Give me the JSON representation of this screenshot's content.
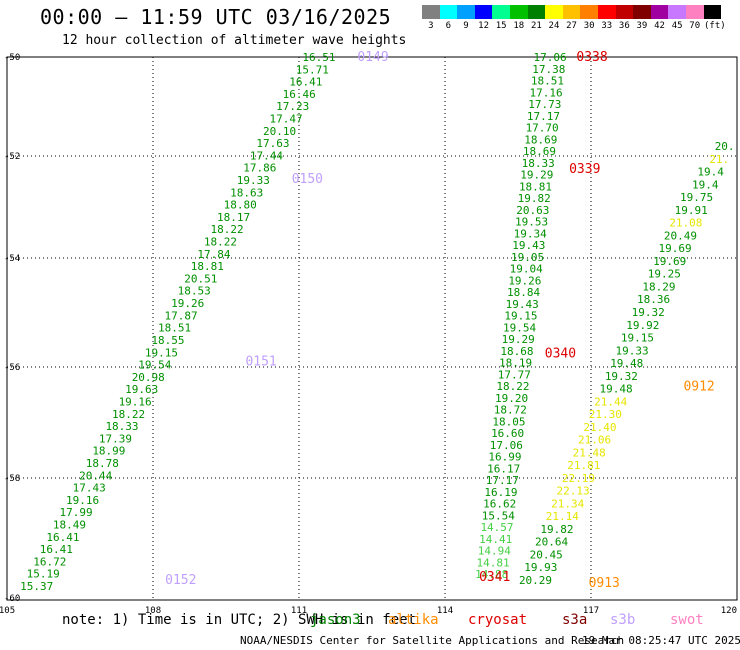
{
  "title": "00:00 — 11:59 UTC 03/16/2025",
  "subtitle": "12 hour collection of altimeter wave heights",
  "legend": {
    "unit": "(ft)",
    "bins": [
      {
        "label": "3",
        "color": "#808080"
      },
      {
        "label": "6",
        "color": "#00ffff"
      },
      {
        "label": "9",
        "color": "#00a0ff"
      },
      {
        "label": "12",
        "color": "#0000ff"
      },
      {
        "label": "15",
        "color": "#00ff90"
      },
      {
        "label": "18",
        "color": "#00c000"
      },
      {
        "label": "21",
        "color": "#008000"
      },
      {
        "label": "24",
        "color": "#ffff00"
      },
      {
        "label": "27",
        "color": "#ffc000"
      },
      {
        "label": "30",
        "color": "#ff8000"
      },
      {
        "label": "33",
        "color": "#ff0000"
      },
      {
        "label": "36",
        "color": "#c00000"
      },
      {
        "label": "39",
        "color": "#800000"
      },
      {
        "label": "42",
        "color": "#a000a0"
      },
      {
        "label": "45",
        "color": "#c878ff"
      },
      {
        "label": "70",
        "color": "#ff80c0"
      },
      {
        "label": "",
        "color": "#000000"
      }
    ]
  },
  "map": {
    "lat_labels": [
      "-50",
      "-52",
      "-54",
      "-56",
      "-58",
      "-60"
    ],
    "lon_labels": [
      "105",
      "108",
      "111",
      "114",
      "117",
      "120"
    ],
    "lat_range": [
      -50,
      -60
    ],
    "lon_range": [
      105,
      120
    ],
    "grid": true
  },
  "colors": {
    "low": "#009000",
    "mid": "#3c9c14",
    "light": "#44d044",
    "yellow": "#e6e600",
    "time_purple": "#c0a0ff",
    "time_red": "#dd0000",
    "time_orange": "#ff8c00"
  },
  "tracks": [
    {
      "name": "jason3",
      "start": [
        111.75,
        -50.0
      ],
      "end": [
        105.95,
        -59.8
      ],
      "color_key": "low",
      "values": [
        "16.51",
        "15.71",
        "16.41",
        "16.46",
        "17.23",
        "17.47",
        "20.10",
        "17.63",
        "17.44",
        "17.86",
        "19.33",
        "18.63",
        "18.80",
        "18.17",
        "18.22",
        "18.22",
        "17.84",
        "18.81",
        "20.51",
        "18.53",
        "19.26",
        "17.87",
        "18.51",
        "18.55",
        "19.15",
        "19.54",
        "20.98",
        "19.63",
        "19.16",
        "18.22",
        "18.33",
        "17.39",
        "18.99",
        "18.78",
        "20.44",
        "17.43",
        "19.16",
        "17.99",
        "18.49",
        "16.41",
        "16.41",
        "16.72",
        "15.19",
        "15.37"
      ]
    },
    {
      "name": "cryosat",
      "start": [
        116.5,
        -50.0
      ],
      "end": [
        115.3,
        -59.6
      ],
      "color_key": "low",
      "values": [
        "17.06",
        "17.38",
        "18.51",
        "17.16",
        "17.73",
        "17.17",
        "17.70",
        "18.69",
        "18.69",
        "18.33",
        "19.29",
        "18.81",
        "19.82",
        "20.63",
        "19.53",
        "19.34",
        "19.43",
        "19.05",
        "19.04",
        "19.26",
        "18.84",
        "19.43",
        "19.15",
        "19.54",
        "19.29",
        "18.68",
        "18.19",
        "17.77",
        "18.22",
        "19.20",
        "18.72",
        "18.05",
        "16.60",
        "17.06",
        "16.99",
        "16.17",
        "17.17",
        "16.19",
        "16.62",
        "15.54",
        "14.57",
        "14.41",
        "14.94",
        "14.81",
        "14.88"
      ]
    },
    {
      "name": "s3a",
      "start": [
        119.95,
        -51.8
      ],
      "end": [
        116.2,
        -59.7
      ],
      "color_key": "low",
      "values": [
        "20.",
        "21.",
        "19.4",
        "19.4",
        "19.75",
        "19.91",
        "21.08",
        "20.49",
        "19.69",
        "19.69",
        "19.25",
        "18.29",
        "18.36",
        "19.32",
        "19.92",
        "19.15",
        "19.33",
        "19.48",
        "19.32",
        "19.48",
        "21.44",
        "21.30",
        "21.40",
        "21.06",
        "21.48",
        "21.81",
        "22.19",
        "22.13",
        "21.34",
        "21.14",
        "19.82",
        "20.64",
        "20.45",
        "19.93",
        "20.29"
      ]
    }
  ],
  "time_labels": [
    {
      "text": "0149",
      "lon": 112.2,
      "lat": -50.0,
      "color_key": "time_purple"
    },
    {
      "text": "0150",
      "lon": 110.85,
      "lat": -52.45,
      "color_key": "time_purple"
    },
    {
      "text": "0151",
      "lon": 109.9,
      "lat": -55.9,
      "color_key": "time_purple"
    },
    {
      "text": "0152",
      "lon": 108.25,
      "lat": -59.7,
      "color_key": "time_purple"
    },
    {
      "text": "0338",
      "lon": 116.7,
      "lat": -50.0,
      "color_key": "time_red"
    },
    {
      "text": "0339",
      "lon": 116.55,
      "lat": -52.25,
      "color_key": "time_red"
    },
    {
      "text": "0340",
      "lon": 116.05,
      "lat": -55.75,
      "color_key": "time_red"
    },
    {
      "text": "0341",
      "lon": 114.7,
      "lat": -59.65,
      "color_key": "time_red"
    },
    {
      "text": "0912",
      "lon": 118.9,
      "lat": -56.35,
      "color_key": "time_orange"
    },
    {
      "text": "0913",
      "lon": 116.95,
      "lat": -59.75,
      "color_key": "time_orange"
    }
  ],
  "note": "note: 1) Time is in UTC; 2) SWH is in feet",
  "satellites": [
    {
      "name": "jason3",
      "color": "#008000"
    },
    {
      "name": "altika",
      "color": "#ff8c00"
    },
    {
      "name": "cryosat",
      "color": "#dd0000"
    },
    {
      "name": "s3a",
      "color": "#800000"
    },
    {
      "name": "s3b",
      "color": "#c0a0ff"
    },
    {
      "name": "swot",
      "color": "#ff80c0"
    }
  ],
  "footer": {
    "left": "NOAA/NESDIS Center for Satellite Applications and Research",
    "right": "19 Mar 08:25:47 UTC 2025"
  }
}
